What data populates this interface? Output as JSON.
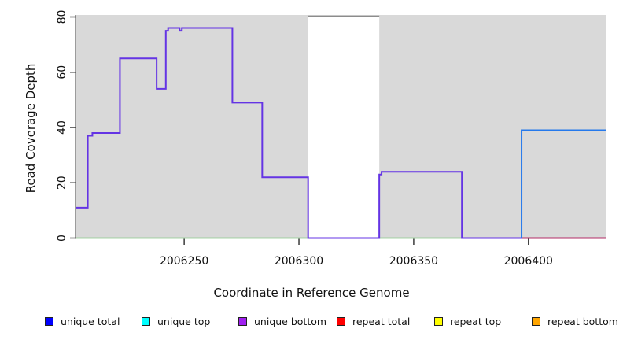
{
  "figure": {
    "background": "#ffffff",
    "axis_color": "#3a3a3a",
    "text_color": "#111111"
  },
  "chart_data": {
    "type": "line",
    "subtype": "step-coverage-plot",
    "title": "",
    "xlabel": "Coordinate in Reference Genome",
    "ylabel": "Read Coverage Depth",
    "xlim": [
      2006203,
      2006434
    ],
    "ylim": [
      0,
      81
    ],
    "x_ticks": [
      2006250,
      2006300,
      2006350,
      2006400
    ],
    "y_ticks": [
      0,
      20,
      40,
      60,
      80
    ],
    "grid": "off",
    "plot_bg": "#d9d9d9",
    "masked_region": {
      "x_start": 2006304,
      "x_end": 2006335,
      "fill": "#ffffff",
      "cap_color": "#8c8c8c"
    },
    "series": [
      {
        "name": "baseline-zero",
        "color": "#8cc98c",
        "width": 1.7,
        "segments": [
          [
            2006203,
            2006397,
            0
          ]
        ]
      },
      {
        "name": "unique bottom",
        "color": "#6434e4",
        "width": 2,
        "segments": [
          [
            2006203,
            2006208,
            11
          ],
          [
            2006208,
            2006210,
            37
          ],
          [
            2006210,
            2006222,
            38
          ],
          [
            2006222,
            2006238,
            65
          ],
          [
            2006238,
            2006242,
            54
          ],
          [
            2006242,
            2006243,
            75
          ],
          [
            2006243,
            2006248,
            76
          ],
          [
            2006248,
            2006249,
            75
          ],
          [
            2006249,
            2006271,
            76
          ],
          [
            2006271,
            2006284,
            49
          ],
          [
            2006284,
            2006304,
            22
          ],
          [
            2006304,
            2006335,
            0
          ],
          [
            2006335,
            2006336,
            23
          ],
          [
            2006336,
            2006371,
            24
          ],
          [
            2006371,
            2006434,
            0
          ]
        ]
      },
      {
        "name": "repeat total",
        "color": "#cc2a3d",
        "width": 1.7,
        "segments": [
          [
            2006397,
            2006434,
            0
          ]
        ]
      },
      {
        "name": "unique total",
        "color": "#2579ec",
        "width": 2,
        "rise_from_zero": true,
        "segments": [
          [
            2006397,
            2006434,
            39
          ]
        ]
      }
    ],
    "legend": [
      {
        "label": "unique total",
        "color": "#0000ff"
      },
      {
        "label": "unique top",
        "color": "#00ffff"
      },
      {
        "label": "unique bottom",
        "color": "#a020f0"
      },
      {
        "label": "repeat total",
        "color": "#ff0000"
      },
      {
        "label": "repeat top",
        "color": "#ffff00"
      },
      {
        "label": "repeat bottom",
        "color": "#ffa500"
      }
    ],
    "legend_position": "bottom"
  }
}
